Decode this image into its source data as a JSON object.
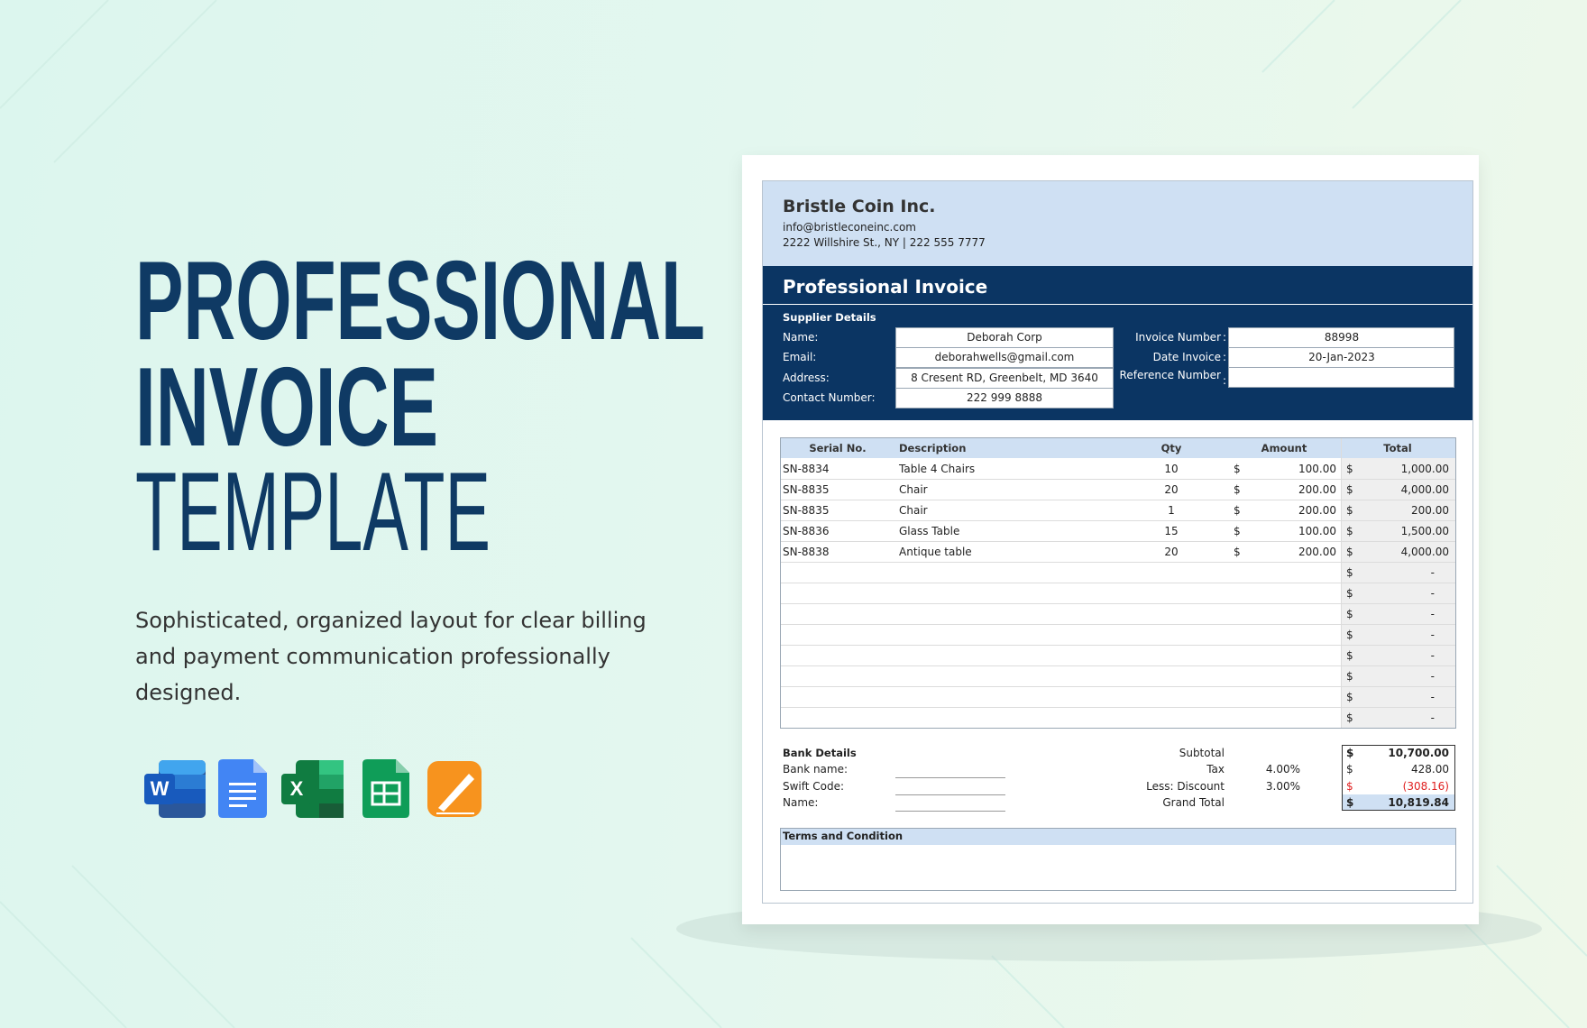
{
  "hero": {
    "title_line1": "PROFESSIONAL",
    "title_line2": "INVOICE",
    "title_line3": "TEMPLATE",
    "description_lines": [
      "Sophisticated, organized layout for clear billing",
      "and payment communication professionally",
      "designed."
    ],
    "icons": {
      "word": "W",
      "excel": "X"
    }
  },
  "invoice": {
    "company": {
      "name": "Bristle Coin Inc.",
      "email": "info@bristleconeinc.com",
      "address": "2222 Willshire St., NY | 222 555 7777"
    },
    "title": "Professional Invoice",
    "supplier": {
      "heading": "Supplier Details",
      "fields": [
        {
          "label": "Name:",
          "value": "Deborah Corp"
        },
        {
          "label": "Email:",
          "value": "deborahwells@gmail.com"
        },
        {
          "label": "Address:",
          "value": "8 Cresent RD, Greenbelt, MD 3640"
        },
        {
          "label": "Contact Number:",
          "value": "222 999 8888"
        }
      ]
    },
    "invoice_info": {
      "separator": ":",
      "fields": [
        {
          "label": "Invoice Number",
          "value": "88998"
        },
        {
          "label": "Date Invoice",
          "value": "20-Jan-2023"
        },
        {
          "label": "Reference Number"
        }
      ]
    },
    "table": {
      "headers": [
        "Serial No.",
        "Description",
        "Qty",
        "Amount",
        "Total"
      ],
      "items": [
        {
          "serial": "SN-8834",
          "description": "Table 4 Chairs",
          "qty": "10",
          "amount_currency": "$",
          "amount": "100.00",
          "total_currency": "$",
          "total": "1,000.00"
        },
        {
          "serial": "SN-8835",
          "description": "Chair",
          "qty": "20",
          "amount_currency": "$",
          "amount": "200.00",
          "total_currency": "$",
          "total": "4,000.00"
        },
        {
          "serial": "SN-8835",
          "description": "Chair",
          "qty": "1",
          "amount_currency": "$",
          "amount": "200.00",
          "total_currency": "$",
          "total": "200.00"
        },
        {
          "serial": "SN-8836",
          "description": "Glass Table",
          "qty": "15",
          "amount_currency": "$",
          "amount": "100.00",
          "total_currency": "$",
          "total": "1,500.00"
        },
        {
          "serial": "SN-8838",
          "description": "Antique table",
          "qty": "20",
          "amount_currency": "$",
          "amount": "200.00",
          "total_currency": "$",
          "total": "4,000.00"
        }
      ],
      "blank_rows": [
        {
          "total_currency": "$",
          "total": "-"
        },
        {
          "total_currency": "$",
          "total": "-"
        },
        {
          "total_currency": "$",
          "total": "-"
        },
        {
          "total_currency": "$",
          "total": "-"
        },
        {
          "total_currency": "$",
          "total": "-"
        },
        {
          "total_currency": "$",
          "total": "-"
        },
        {
          "total_currency": "$",
          "total": "-"
        },
        {
          "total_currency": "$",
          "total": "-"
        }
      ]
    },
    "bank": {
      "heading": "Bank Details",
      "fields": [
        "Bank name:",
        "Swift Code:",
        "Name:"
      ]
    },
    "summary": [
      {
        "label": "Subtotal",
        "currency": "$",
        "value": "10,700.00"
      },
      {
        "label": "Tax",
        "rate": "4.00%",
        "currency": "$",
        "value": "428.00"
      },
      {
        "label": "Less: Discount",
        "rate": "3.00%",
        "currency": "$",
        "value": "(308.16)"
      },
      {
        "label": "Grand Total",
        "currency": "$",
        "value": "10,819.84"
      }
    ],
    "terms": "Terms and Condition"
  }
}
